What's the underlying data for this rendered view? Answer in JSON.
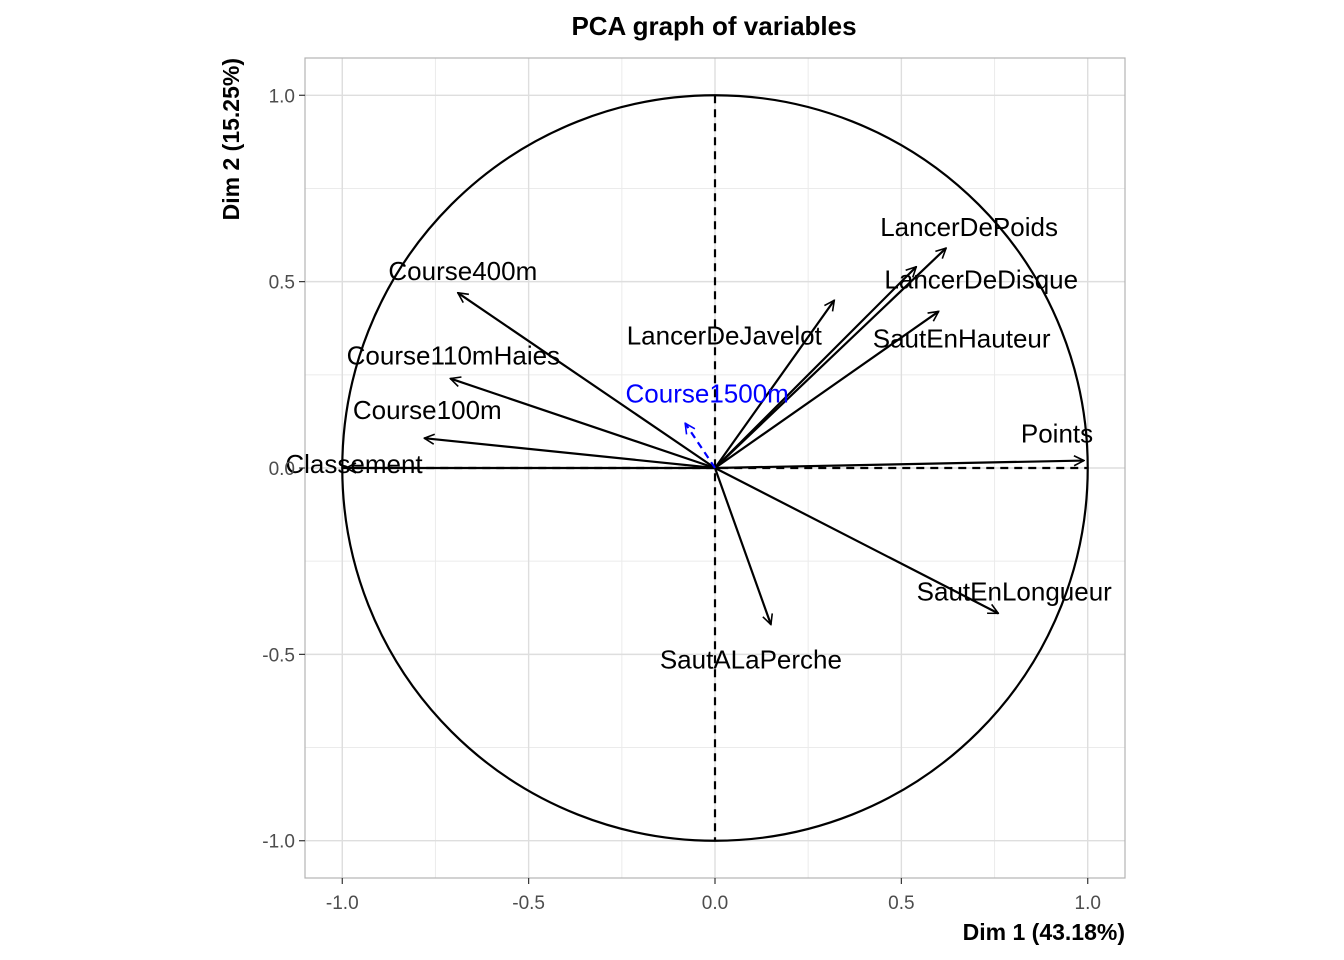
{
  "chart_data": {
    "type": "scatter",
    "title": "PCA graph of variables",
    "xlabel": "Dim 1 (43.18%)",
    "ylabel": "Dim 2 (15.25%)",
    "xlim": [
      -1.1,
      1.1
    ],
    "ylim": [
      -1.1,
      1.1
    ],
    "x_ticks": [
      "-1.0",
      "-0.5",
      "0.0",
      "0.5",
      "1.0"
    ],
    "y_ticks": [
      "-1.0",
      "-0.5",
      "0.0",
      "0.5",
      "1.0"
    ],
    "grid": true,
    "unit_circle": true,
    "variables": [
      {
        "name": "Course400m",
        "x": -0.69,
        "y": 0.47,
        "supplementary": false
      },
      {
        "name": "Course110mHaies",
        "x": -0.71,
        "y": 0.24,
        "supplementary": false
      },
      {
        "name": "Course100m",
        "x": -0.78,
        "y": 0.08,
        "supplementary": false
      },
      {
        "name": "Classement",
        "x": -0.99,
        "y": 0.0,
        "supplementary": false
      },
      {
        "name": "LancerDePoids",
        "x": 0.62,
        "y": 0.59,
        "supplementary": false
      },
      {
        "name": "LancerDeDisque",
        "x": 0.54,
        "y": 0.54,
        "supplementary": false
      },
      {
        "name": "LancerDeJavelot",
        "x": 0.32,
        "y": 0.45,
        "supplementary": false
      },
      {
        "name": "SautEnHauteur",
        "x": 0.6,
        "y": 0.42,
        "supplementary": false
      },
      {
        "name": "Points",
        "x": 0.99,
        "y": 0.02,
        "supplementary": false
      },
      {
        "name": "SautEnLongueur",
        "x": 0.76,
        "y": -0.39,
        "supplementary": false
      },
      {
        "name": "SautALaPerche",
        "x": 0.15,
        "y": -0.42,
        "supplementary": false
      },
      {
        "name": "Course1500m",
        "x": -0.08,
        "y": 0.12,
        "supplementary": true
      }
    ],
    "colors": {
      "active": "#000000",
      "supplementary": "#0000FF",
      "grid": "#ebebeb",
      "panel_border": "#b3b3b3"
    }
  }
}
